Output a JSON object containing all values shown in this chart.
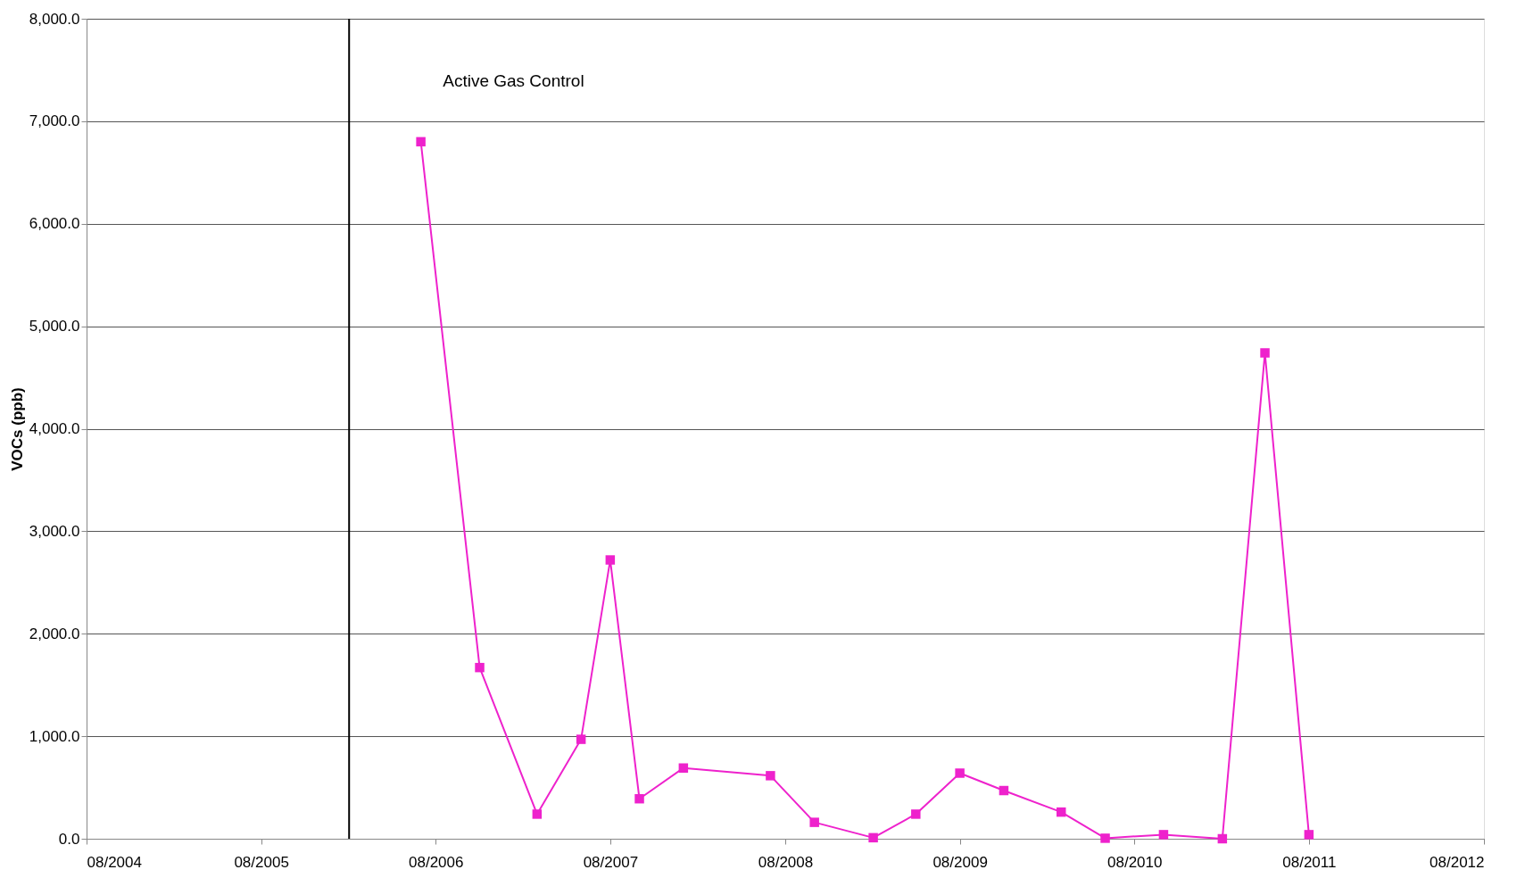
{
  "chart_data": {
    "type": "line",
    "ylabel": "VOCs (ppb)",
    "x": [
      "2006-07",
      "2006-11",
      "2007-03",
      "2007-06",
      "2007-08",
      "2007-10",
      "2008-01",
      "2008-07",
      "2008-10",
      "2009-02",
      "2009-05",
      "2009-08",
      "2009-11",
      "2010-03",
      "2010-06",
      "2010-10",
      "2011-02",
      "2011-05",
      "2011-08"
    ],
    "series": [
      {
        "color": "#ee22cc",
        "values": [
          6800,
          1670,
          240,
          970,
          2720,
          390,
          690,
          615,
          160,
          10,
          240,
          640,
          470,
          260,
          5,
          40,
          0,
          4740,
          40
        ]
      }
    ],
    "xlim": [
      "2004-08",
      "2012-08"
    ],
    "xticks": [
      {
        "value": "2004-08",
        "label": "08/2004"
      },
      {
        "value": "2005-08",
        "label": "08/2005"
      },
      {
        "value": "2006-08",
        "label": "08/2006"
      },
      {
        "value": "2007-08",
        "label": "08/2007"
      },
      {
        "value": "2008-08",
        "label": "08/2008"
      },
      {
        "value": "2009-08",
        "label": "08/2009"
      },
      {
        "value": "2010-08",
        "label": "08/2010"
      },
      {
        "value": "2011-08",
        "label": "08/2011"
      },
      {
        "value": "2012-08",
        "label": "08/2012"
      }
    ],
    "ylim": [
      0,
      8000
    ],
    "yticks": [
      {
        "value": 0,
        "label": "0.0"
      },
      {
        "value": 1000,
        "label": "1,000.0"
      },
      {
        "value": 2000,
        "label": "2,000.0"
      },
      {
        "value": 3000,
        "label": "3,000.0"
      },
      {
        "value": 4000,
        "label": "4,000.0"
      },
      {
        "value": 5000,
        "label": "5,000.0"
      },
      {
        "value": 6000,
        "label": "6,000.0"
      },
      {
        "value": 7000,
        "label": "7,000.0"
      },
      {
        "value": 8000,
        "label": "8,000.0"
      }
    ],
    "ref_lines": [
      {
        "axis": "x",
        "value": "2006-02",
        "label": "Active Gas Control",
        "color": "#000000"
      }
    ],
    "grid": "y",
    "marker": "square",
    "line_style": "solid"
  }
}
